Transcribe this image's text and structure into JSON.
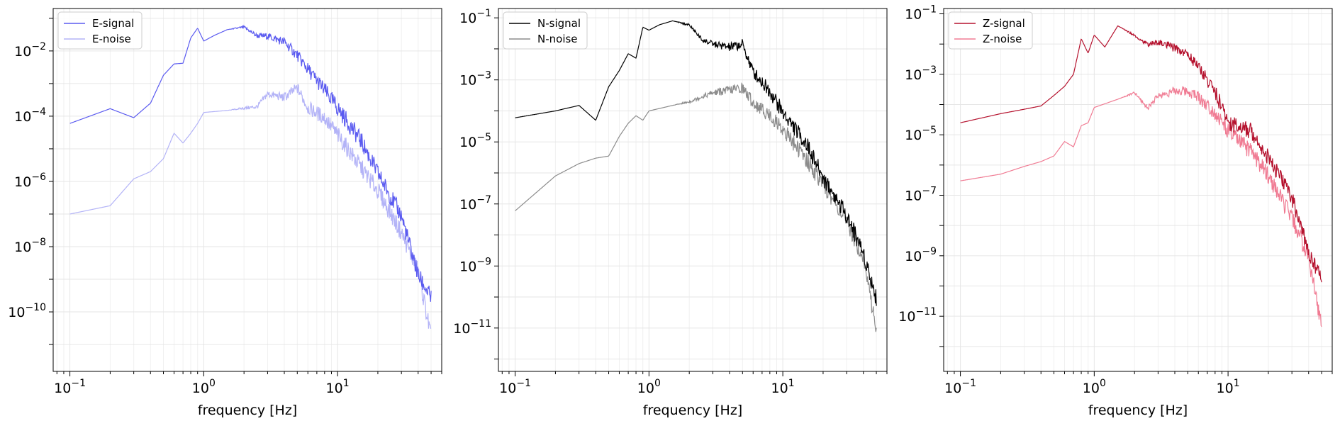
{
  "chart_data": [
    {
      "type": "line",
      "xscale": "log",
      "yscale": "log",
      "xlim": [
        0.075,
        60
      ],
      "ylim": [
        1.5e-12,
        0.2
      ],
      "xlabel": "frequency [Hz]",
      "xticks": [
        {
          "base": "10",
          "exp": "−1",
          "value": 0.1
        },
        {
          "base": "10",
          "exp": "0",
          "value": 1
        },
        {
          "base": "10",
          "exp": "1",
          "value": 10
        }
      ],
      "yticks": [
        {
          "base": "10",
          "exp": "−2",
          "value": 0.01
        },
        {
          "base": "10",
          "exp": "−4",
          "value": 0.0001
        },
        {
          "base": "10",
          "exp": "−6",
          "value": 1e-06
        },
        {
          "base": "10",
          "exp": "−8",
          "value": 1e-08
        },
        {
          "base": "10",
          "exp": "−10",
          "value": 1e-10
        }
      ],
      "grid": true,
      "legend_position": "top-left",
      "series": [
        {
          "name": "E-signal",
          "color": "#5b5bf0",
          "width": 1.4,
          "x": [
            0.1,
            0.2,
            0.3,
            0.4,
            0.5,
            0.6,
            0.7,
            0.8,
            0.9,
            1.0,
            1.2,
            1.5,
            2.0,
            2.5,
            3.0,
            4.0,
            5.0,
            6.0,
            8.0,
            10.0,
            15.0,
            20.0,
            30.0,
            40.0,
            50.0
          ],
          "y": [
            6e-05,
            0.00017,
            9e-05,
            0.00025,
            0.0018,
            0.004,
            0.0042,
            0.025,
            0.05,
            0.02,
            0.03,
            0.045,
            0.055,
            0.03,
            0.03,
            0.02,
            0.008,
            0.003,
            0.0007,
            0.0002,
            2e-05,
            2e-06,
            1e-07,
            1.5e-09,
            3e-10
          ]
        },
        {
          "name": "E-noise",
          "color": "#b3b3f7",
          "width": 1.4,
          "x": [
            0.1,
            0.2,
            0.3,
            0.4,
            0.5,
            0.6,
            0.7,
            0.8,
            0.9,
            1.0,
            1.5,
            2.0,
            2.5,
            3.0,
            4.0,
            5.0,
            6.0,
            8.0,
            10.0,
            15.0,
            20.0,
            30.0,
            40.0,
            50.0
          ],
          "y": [
            1e-07,
            1.8e-07,
            1.2e-06,
            2e-06,
            5e-06,
            3e-05,
            1.5e-05,
            3e-05,
            6e-05,
            0.00013,
            0.00015,
            0.00018,
            0.0002,
            0.0005,
            0.0004,
            0.0008,
            0.0002,
            0.0001,
            3e-05,
            3e-06,
            6e-07,
            3e-08,
            2e-09,
            2e-11
          ]
        }
      ]
    },
    {
      "type": "line",
      "xscale": "log",
      "yscale": "log",
      "xlim": [
        0.075,
        60
      ],
      "ylim": [
        4e-13,
        0.2
      ],
      "xlabel": "frequency [Hz]",
      "xticks": [
        {
          "base": "10",
          "exp": "−1",
          "value": 0.1
        },
        {
          "base": "10",
          "exp": "0",
          "value": 1
        },
        {
          "base": "10",
          "exp": "1",
          "value": 10
        }
      ],
      "yticks": [
        {
          "base": "10",
          "exp": "−1",
          "value": 0.1
        },
        {
          "base": "10",
          "exp": "−3",
          "value": 0.001
        },
        {
          "base": "10",
          "exp": "−5",
          "value": 1e-05
        },
        {
          "base": "10",
          "exp": "−7",
          "value": 1e-07
        },
        {
          "base": "10",
          "exp": "−9",
          "value": 1e-09
        },
        {
          "base": "10",
          "exp": "−11",
          "value": 1e-11
        }
      ],
      "grid": true,
      "legend_position": "top-left",
      "series": [
        {
          "name": "N-signal",
          "color": "#000000",
          "width": 1.4,
          "x": [
            0.1,
            0.2,
            0.3,
            0.4,
            0.5,
            0.6,
            0.7,
            0.8,
            0.9,
            1.0,
            1.2,
            1.5,
            2.0,
            2.5,
            3.0,
            4.0,
            5.0,
            6.0,
            8.0,
            10.0,
            15.0,
            20.0,
            30.0,
            40.0,
            50.0
          ],
          "y": [
            6e-05,
            0.0001,
            0.00015,
            5e-05,
            0.0006,
            0.002,
            0.007,
            0.005,
            0.05,
            0.04,
            0.06,
            0.08,
            0.06,
            0.02,
            0.015,
            0.012,
            0.015,
            0.002,
            0.0005,
            0.0001,
            1e-05,
            8e-07,
            5e-08,
            3e-09,
            1e-10
          ]
        },
        {
          "name": "N-noise",
          "color": "#8c8c8c",
          "width": 1.4,
          "x": [
            0.1,
            0.2,
            0.3,
            0.4,
            0.5,
            0.6,
            0.7,
            0.8,
            0.9,
            1.0,
            1.5,
            2.0,
            2.5,
            3.0,
            4.0,
            5.0,
            6.0,
            8.0,
            10.0,
            15.0,
            20.0,
            30.0,
            40.0,
            50.0
          ],
          "y": [
            6e-08,
            8e-07,
            2e-06,
            3e-06,
            3.5e-06,
            1.5e-05,
            4e-05,
            7e-05,
            5e-05,
            0.0001,
            0.00015,
            0.0002,
            0.0003,
            0.0004,
            0.0005,
            0.0006,
            0.0002,
            8e-05,
            3e-05,
            3e-06,
            5e-07,
            3e-08,
            2e-09,
            1e-11
          ]
        }
      ]
    },
    {
      "type": "line",
      "xscale": "log",
      "yscale": "log",
      "xlim": [
        0.075,
        60
      ],
      "ylim": [
        1.5e-13,
        0.15
      ],
      "xlabel": "frequency [Hz]",
      "xticks": [
        {
          "base": "10",
          "exp": "−1",
          "value": 0.1
        },
        {
          "base": "10",
          "exp": "0",
          "value": 1
        },
        {
          "base": "10",
          "exp": "1",
          "value": 10
        }
      ],
      "yticks": [
        {
          "base": "10",
          "exp": "−1",
          "value": 0.1
        },
        {
          "base": "10",
          "exp": "−3",
          "value": 0.001
        },
        {
          "base": "10",
          "exp": "−5",
          "value": 1e-05
        },
        {
          "base": "10",
          "exp": "−7",
          "value": 1e-07
        },
        {
          "base": "10",
          "exp": "−9",
          "value": 1e-09
        },
        {
          "base": "10",
          "exp": "−11",
          "value": 1e-11
        }
      ],
      "grid": true,
      "legend_position": "top-left",
      "series": [
        {
          "name": "Z-signal",
          "color": "#b5122e",
          "width": 1.4,
          "x": [
            0.1,
            0.2,
            0.3,
            0.4,
            0.5,
            0.6,
            0.7,
            0.8,
            0.9,
            1.0,
            1.2,
            1.5,
            2.0,
            2.5,
            3.0,
            4.0,
            5.0,
            6.0,
            8.0,
            10.0,
            15.0,
            20.0,
            30.0,
            40.0,
            50.0
          ],
          "y": [
            2.5e-05,
            5e-05,
            7e-05,
            9e-05,
            0.0002,
            0.0004,
            0.001,
            0.015,
            0.005,
            0.02,
            0.008,
            0.04,
            0.02,
            0.01,
            0.012,
            0.008,
            0.005,
            0.002,
            0.0003,
            3e-05,
            1.5e-05,
            2e-06,
            1e-07,
            1.5e-09,
            2e-10
          ]
        },
        {
          "name": "Z-noise",
          "color": "#f07b93",
          "width": 1.4,
          "x": [
            0.1,
            0.2,
            0.3,
            0.4,
            0.5,
            0.6,
            0.7,
            0.8,
            0.9,
            1.0,
            1.5,
            2.0,
            2.5,
            3.0,
            4.0,
            5.0,
            6.0,
            8.0,
            10.0,
            15.0,
            20.0,
            30.0,
            40.0,
            50.0
          ],
          "y": [
            3e-07,
            5e-07,
            9e-07,
            1.3e-06,
            2e-06,
            6e-06,
            4e-06,
            2e-05,
            2.5e-05,
            8e-05,
            0.00015,
            0.00025,
            8e-05,
            0.0002,
            0.0003,
            0.0003,
            0.0002,
            6e-05,
            1.5e-05,
            3e-06,
            5e-07,
            2e-08,
            1e-09,
            5e-12
          ]
        }
      ]
    }
  ]
}
